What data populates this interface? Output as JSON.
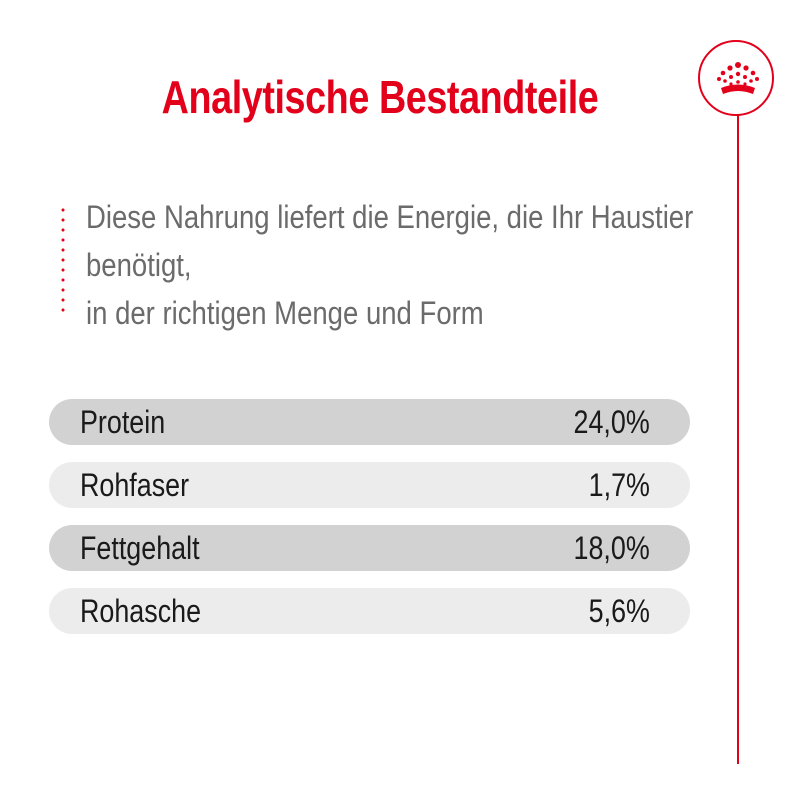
{
  "title": "Analytische Bestandteile",
  "description": {
    "lines": [
      "Diese Nahrung liefert die Energie, die Ihr Haustier",
      "benötigt,",
      "in der richtigen Menge und Form"
    ]
  },
  "nutrients": [
    {
      "name": "Protein",
      "value": "24,0%"
    },
    {
      "name": "Rohfaser",
      "value": "1,7%"
    },
    {
      "name": "Fettgehalt",
      "value": "18,0%"
    },
    {
      "name": "Rohasche",
      "value": "5,6%"
    }
  ],
  "colors": {
    "accent": "#e2001a",
    "text": "#1a1a1a",
    "description": "#6b6b6b",
    "row_dark": "#d2d2d2",
    "row_light": "#ececec"
  },
  "icons": {
    "brand": "crown-icon"
  }
}
